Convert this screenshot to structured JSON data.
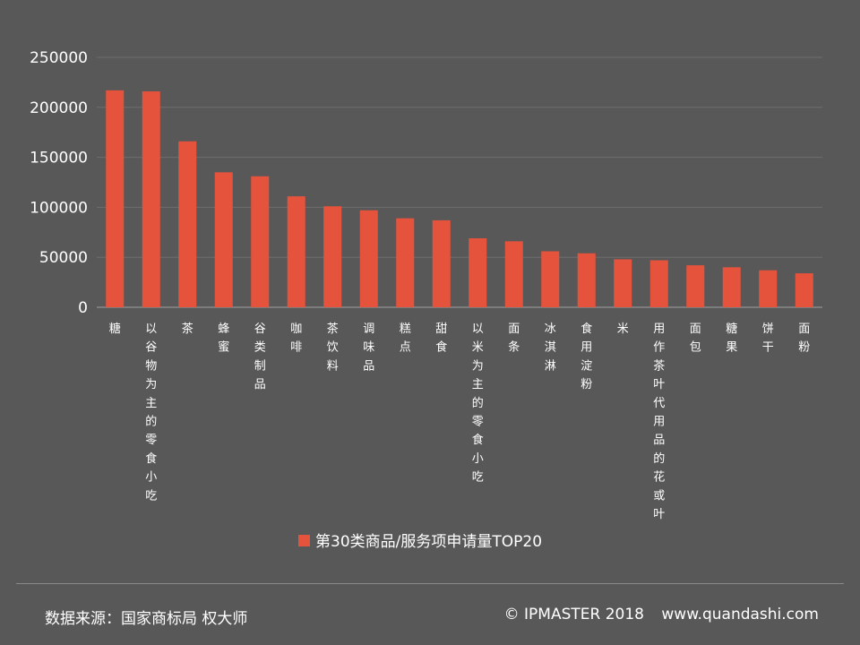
{
  "chart_data": {
    "type": "bar",
    "categories": [
      "糖",
      "以谷物为主的零食小吃",
      "茶",
      "蜂蜜",
      "谷类制品",
      "咖啡",
      "茶饮料",
      "调味品",
      "糕点",
      "甜食",
      "以米为主的零食小吃",
      "面条",
      "冰淇淋",
      "食用淀粉",
      "米",
      "用作茶叶代用品的花或叶",
      "面包",
      "糖果",
      "饼干",
      "面粉"
    ],
    "series": [
      {
        "name": "第30类商品/服务项申请量TOP20",
        "values": [
          217000,
          216000,
          166000,
          135000,
          131000,
          111000,
          101000,
          97000,
          89000,
          87000,
          69000,
          66000,
          56000,
          54000,
          48000,
          47000,
          42000,
          40000,
          37000,
          34000
        ],
        "color": "#e5533d"
      }
    ],
    "yticks": [
      "0",
      "50000",
      "100000",
      "150000",
      "200000",
      "250000"
    ],
    "ylim": [
      0,
      250000
    ],
    "grid": true,
    "legend_position": "bottom"
  },
  "footer": {
    "source": "数据来源：国家商标局  权大师",
    "copyright": "© IPMASTER  2018",
    "website": "www.quandashi.com"
  }
}
